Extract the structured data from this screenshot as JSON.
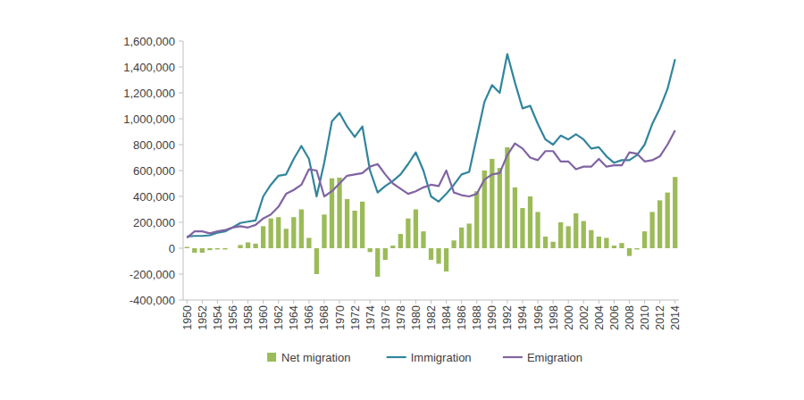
{
  "chart_data": {
    "type": "bar",
    "categories": [
      "1950",
      null,
      "1952",
      null,
      "1954",
      null,
      "1956",
      null,
      "1958",
      null,
      "1960",
      null,
      "1962",
      null,
      "1964",
      null,
      "1966",
      null,
      "1968",
      null,
      "1970",
      null,
      "1972",
      null,
      "1974",
      null,
      "1976",
      null,
      "1978",
      null,
      "1980",
      null,
      "1982",
      null,
      "1984",
      null,
      "1986",
      null,
      "1988",
      null,
      "1990",
      null,
      "1992",
      null,
      "1994",
      null,
      "1996",
      null,
      "1998",
      null,
      "2000",
      null,
      "2002",
      null,
      "2004",
      null,
      "2006",
      null,
      "2008",
      null,
      "2010",
      null,
      "2012",
      null,
      "2014"
    ],
    "series": [
      {
        "name": "Net migration",
        "type": "bar",
        "color": "#9bbb59",
        "values": [
          10000,
          -35000,
          -35000,
          -15000,
          -10000,
          -10000,
          0,
          25000,
          45000,
          35000,
          170000,
          230000,
          240000,
          150000,
          240000,
          300000,
          80000,
          -200000,
          260000,
          540000,
          545000,
          380000,
          290000,
          360000,
          -30000,
          -220000,
          -90000,
          20000,
          110000,
          230000,
          300000,
          130000,
          -90000,
          -120000,
          -180000,
          60000,
          160000,
          190000,
          440000,
          600000,
          690000,
          620000,
          780000,
          470000,
          310000,
          400000,
          280000,
          90000,
          50000,
          200000,
          170000,
          270000,
          210000,
          140000,
          90000,
          80000,
          20000,
          40000,
          -60000,
          -10000,
          130000,
          280000,
          370000,
          430000,
          550000
        ]
      },
      {
        "name": "Immigration",
        "type": "line",
        "color": "#31859c",
        "values": [
          90000,
          95000,
          95000,
          100000,
          120000,
          130000,
          160000,
          195000,
          205000,
          215000,
          400000,
          490000,
          560000,
          570000,
          690000,
          790000,
          690000,
          400000,
          660000,
          980000,
          1045000,
          940000,
          860000,
          940000,
          600000,
          430000,
          480000,
          520000,
          570000,
          650000,
          740000,
          600000,
          400000,
          360000,
          420000,
          490000,
          570000,
          590000,
          860000,
          1130000,
          1260000,
          1200000,
          1500000,
          1280000,
          1080000,
          1100000,
          960000,
          840000,
          800000,
          870000,
          840000,
          880000,
          840000,
          770000,
          780000,
          710000,
          660000,
          680000,
          680000,
          720000,
          800000,
          960000,
          1080000,
          1230000,
          1460000
        ]
      },
      {
        "name": "Emigration",
        "type": "line",
        "color": "#8064a2",
        "values": [
          80000,
          130000,
          130000,
          115000,
          130000,
          140000,
          160000,
          170000,
          160000,
          180000,
          230000,
          260000,
          320000,
          420000,
          450000,
          490000,
          610000,
          600000,
          400000,
          440000,
          500000,
          560000,
          570000,
          580000,
          630000,
          650000,
          570000,
          500000,
          460000,
          420000,
          440000,
          470000,
          490000,
          480000,
          600000,
          430000,
          410000,
          400000,
          420000,
          530000,
          570000,
          580000,
          720000,
          810000,
          770000,
          700000,
          680000,
          750000,
          750000,
          670000,
          670000,
          610000,
          630000,
          630000,
          690000,
          630000,
          640000,
          640000,
          740000,
          730000,
          670000,
          680000,
          710000,
          800000,
          910000
        ]
      }
    ],
    "ylim": [
      -400000,
      1600000
    ],
    "yticks": [
      {
        "value": -400000,
        "label": "-400,000"
      },
      {
        "value": -200000,
        "label": "-200,000"
      },
      0,
      {
        "value": 200000,
        "label": "200,000"
      },
      {
        "value": 400000,
        "label": "400,000"
      },
      {
        "value": 600000,
        "label": "600,000"
      },
      {
        "value": 800000,
        "label": "800,000"
      },
      {
        "value": 1000000,
        "label": "1,000,000"
      },
      {
        "value": 1200000,
        "label": "1,200,000"
      },
      {
        "value": 1400000,
        "label": "1,400,000"
      },
      {
        "value": 1600000,
        "label": "1,600,000"
      }
    ],
    "grid": false,
    "legend": "bottom"
  }
}
